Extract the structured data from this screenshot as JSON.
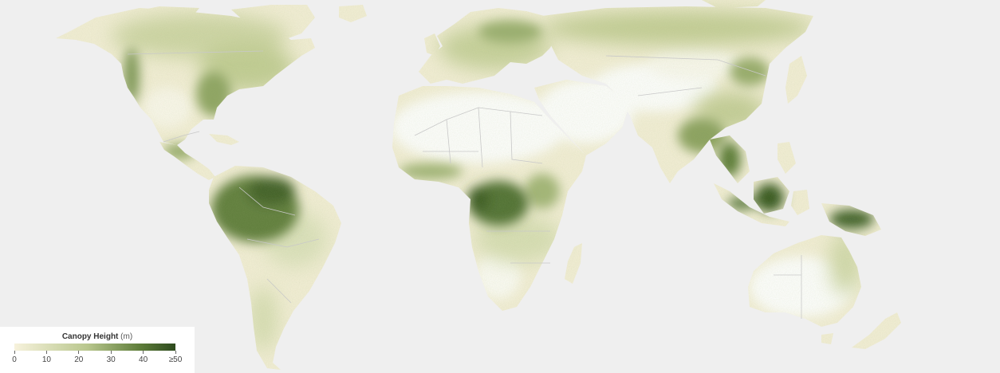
{
  "map": {
    "background_color": "#efefef",
    "land_base_color": "#f4efd7",
    "desert_color": "#ffffff",
    "border_color": "#c8c8c8"
  },
  "legend": {
    "title": "Canopy Height",
    "unit": "(m)",
    "ticks": [
      {
        "value": 0,
        "label": "0"
      },
      {
        "value": 10,
        "label": "10"
      },
      {
        "value": 20,
        "label": "20"
      },
      {
        "value": 30,
        "label": "30"
      },
      {
        "value": 40,
        "label": "40"
      },
      {
        "value": 50,
        "label": "≥50"
      }
    ],
    "colors": {
      "low": "#f7f2dc",
      "mid": "#b9c78e",
      "high": "#5e7d3a",
      "max": "#2d4a1e"
    }
  }
}
